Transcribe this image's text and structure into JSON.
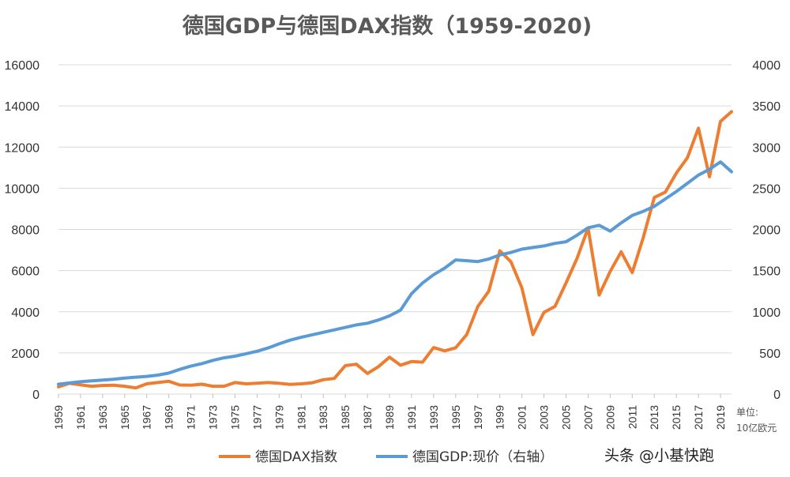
{
  "chart_data": {
    "type": "line",
    "title": "德国GDP与德国DAX指数（1959-2020)",
    "x": [
      1959,
      1960,
      1961,
      1962,
      1963,
      1964,
      1965,
      1966,
      1967,
      1968,
      1969,
      1970,
      1971,
      1972,
      1973,
      1974,
      1975,
      1976,
      1977,
      1978,
      1979,
      1980,
      1981,
      1982,
      1983,
      1984,
      1985,
      1986,
      1987,
      1988,
      1989,
      1990,
      1991,
      1992,
      1993,
      1994,
      1995,
      1996,
      1997,
      1998,
      1999,
      2000,
      2001,
      2002,
      2003,
      2004,
      2005,
      2006,
      2007,
      2008,
      2009,
      2010,
      2011,
      2012,
      2013,
      2014,
      2015,
      2016,
      2017,
      2018,
      2019,
      2020
    ],
    "x_tick_labels": [
      "1959",
      "1961",
      "1963",
      "1965",
      "1967",
      "1969",
      "1971",
      "1973",
      "1975",
      "1977",
      "1979",
      "1981",
      "1983",
      "1985",
      "1987",
      "1989",
      "1991",
      "1993",
      "1995",
      "1997",
      "1999",
      "2001",
      "2003",
      "2005",
      "2007",
      "2009",
      "2011",
      "2013",
      "2015",
      "2017",
      "2019"
    ],
    "left_axis": {
      "ylim": [
        0,
        16000
      ],
      "ticks": [
        "0",
        "2000",
        "4000",
        "6000",
        "8000",
        "10000",
        "12000",
        "14000",
        "16000"
      ]
    },
    "right_axis": {
      "ylim": [
        0,
        4000
      ],
      "ticks": [
        "0",
        "500",
        "1000",
        "1500",
        "2000",
        "2500",
        "3000",
        "3500",
        "4000"
      ],
      "unit_line1": "单位:",
      "unit_line2": "10亿欧元"
    },
    "series": [
      {
        "name": "德国DAX指数",
        "axis": "left",
        "color": "#ED7D31",
        "values": [
          350,
          520,
          450,
          380,
          420,
          430,
          380,
          300,
          500,
          560,
          620,
          440,
          430,
          480,
          380,
          380,
          560,
          500,
          530,
          560,
          520,
          470,
          500,
          550,
          700,
          760,
          1380,
          1450,
          1000,
          1330,
          1790,
          1400,
          1580,
          1550,
          2260,
          2100,
          2250,
          2890,
          4250,
          5000,
          6960,
          6430,
          5160,
          2890,
          3970,
          4260,
          5400,
          6600,
          8070,
          4810,
          5960,
          6910,
          5900,
          7610,
          9550,
          9810,
          10740,
          11480,
          12920,
          10560,
          13250,
          13720
        ]
      },
      {
        "name": "德国GDP:现价（右轴）",
        "axis": "right",
        "color": "#5B9BD5",
        "values": [
          120,
          135,
          150,
          160,
          170,
          180,
          195,
          205,
          215,
          230,
          255,
          300,
          340,
          370,
          410,
          440,
          460,
          490,
          520,
          560,
          610,
          655,
          690,
          720,
          750,
          780,
          810,
          840,
          860,
          900,
          950,
          1020,
          1220,
          1350,
          1450,
          1530,
          1630,
          1620,
          1610,
          1640,
          1690,
          1720,
          1760,
          1780,
          1800,
          1830,
          1850,
          1930,
          2020,
          2050,
          1980,
          2080,
          2170,
          2220,
          2280,
          2370,
          2460,
          2560,
          2660,
          2730,
          2820,
          2700
        ]
      }
    ]
  },
  "legend": {
    "dax_label": "德国DAX指数",
    "gdp_label": "德国GDP:现价（右轴）"
  },
  "watermark": {
    "text": "头条 @小基快跑"
  }
}
